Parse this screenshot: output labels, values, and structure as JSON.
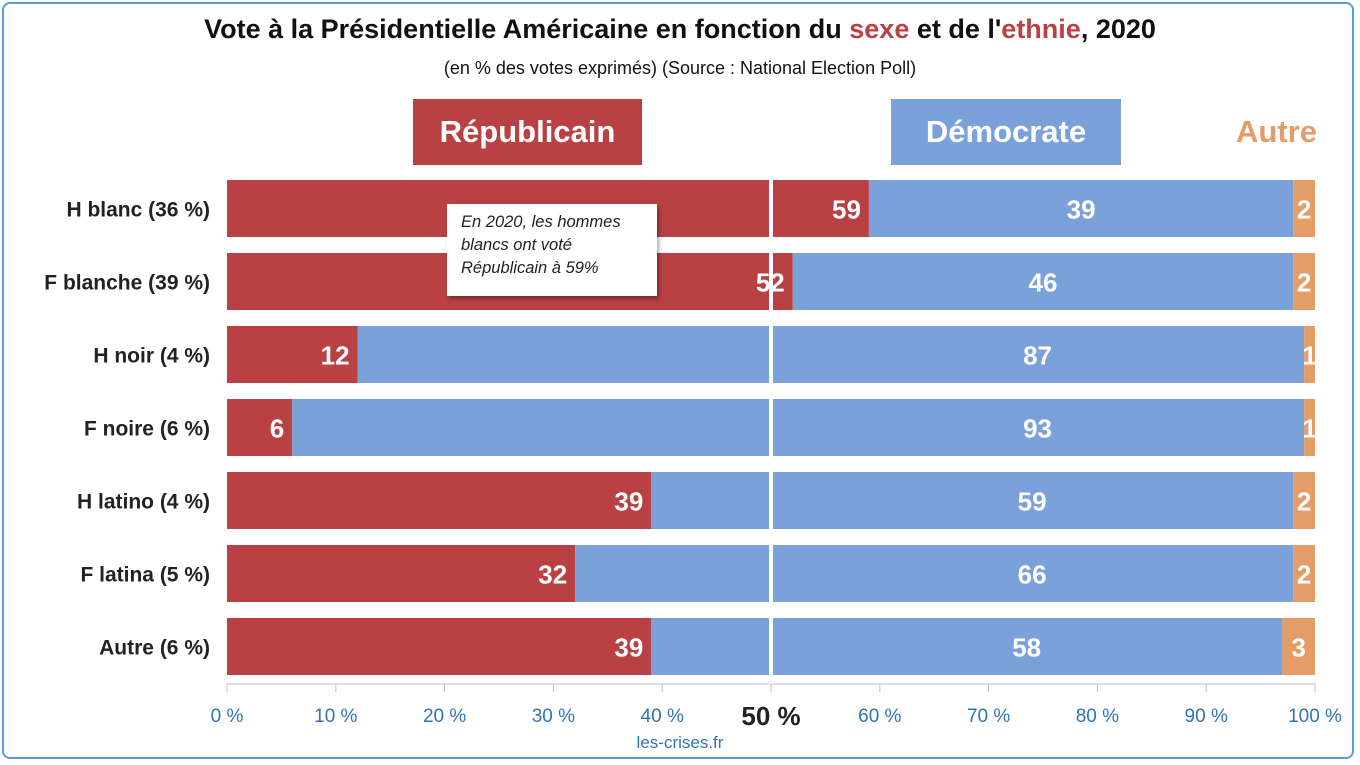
{
  "title": {
    "prefix": "Vote à la Présidentielle Américaine en fonction du ",
    "highlight1": "sexe",
    "middle": " et de l'",
    "highlight2": "ethnie",
    "suffix": ", 2020"
  },
  "subtitle": "(en % des votes exprimés) (Source : National Election Poll)",
  "legend": {
    "republican": "Républicain",
    "democrat": "Démocrate",
    "other": "Autre"
  },
  "annotation": "En 2020, les hommes blancs ont voté Républicain à 59%",
  "source": "les-crises.fr",
  "colors": {
    "republican": "#b94043",
    "democrat": "#7ba1db",
    "other": "#e59d68",
    "axis_labels": "#2e75b6"
  },
  "chart_data": {
    "type": "bar",
    "orientation": "horizontal",
    "stacked": true,
    "categories": [
      "H blanc (36 %)",
      "F blanche (39 %)",
      "H noir (4 %)",
      "F noire (6 %)",
      "H latino (4 %)",
      "F latina (5 %)",
      "Autre (6 %)"
    ],
    "series": [
      {
        "name": "Républicain",
        "values": [
          59,
          52,
          12,
          6,
          39,
          32,
          39
        ]
      },
      {
        "name": "Démocrate",
        "values": [
          39,
          46,
          87,
          93,
          59,
          66,
          58
        ]
      },
      {
        "name": "Autre",
        "values": [
          2,
          2,
          1,
          1,
          2,
          2,
          3
        ]
      }
    ],
    "x_ticks": [
      "0 %",
      "10 %",
      "20 %",
      "30 %",
      "40 %",
      "50 %",
      "60 %",
      "70 %",
      "80 %",
      "90 %",
      "100 %"
    ],
    "xlim": [
      0,
      100
    ],
    "reference_line": 50,
    "grid": false,
    "legend_position": "top"
  }
}
